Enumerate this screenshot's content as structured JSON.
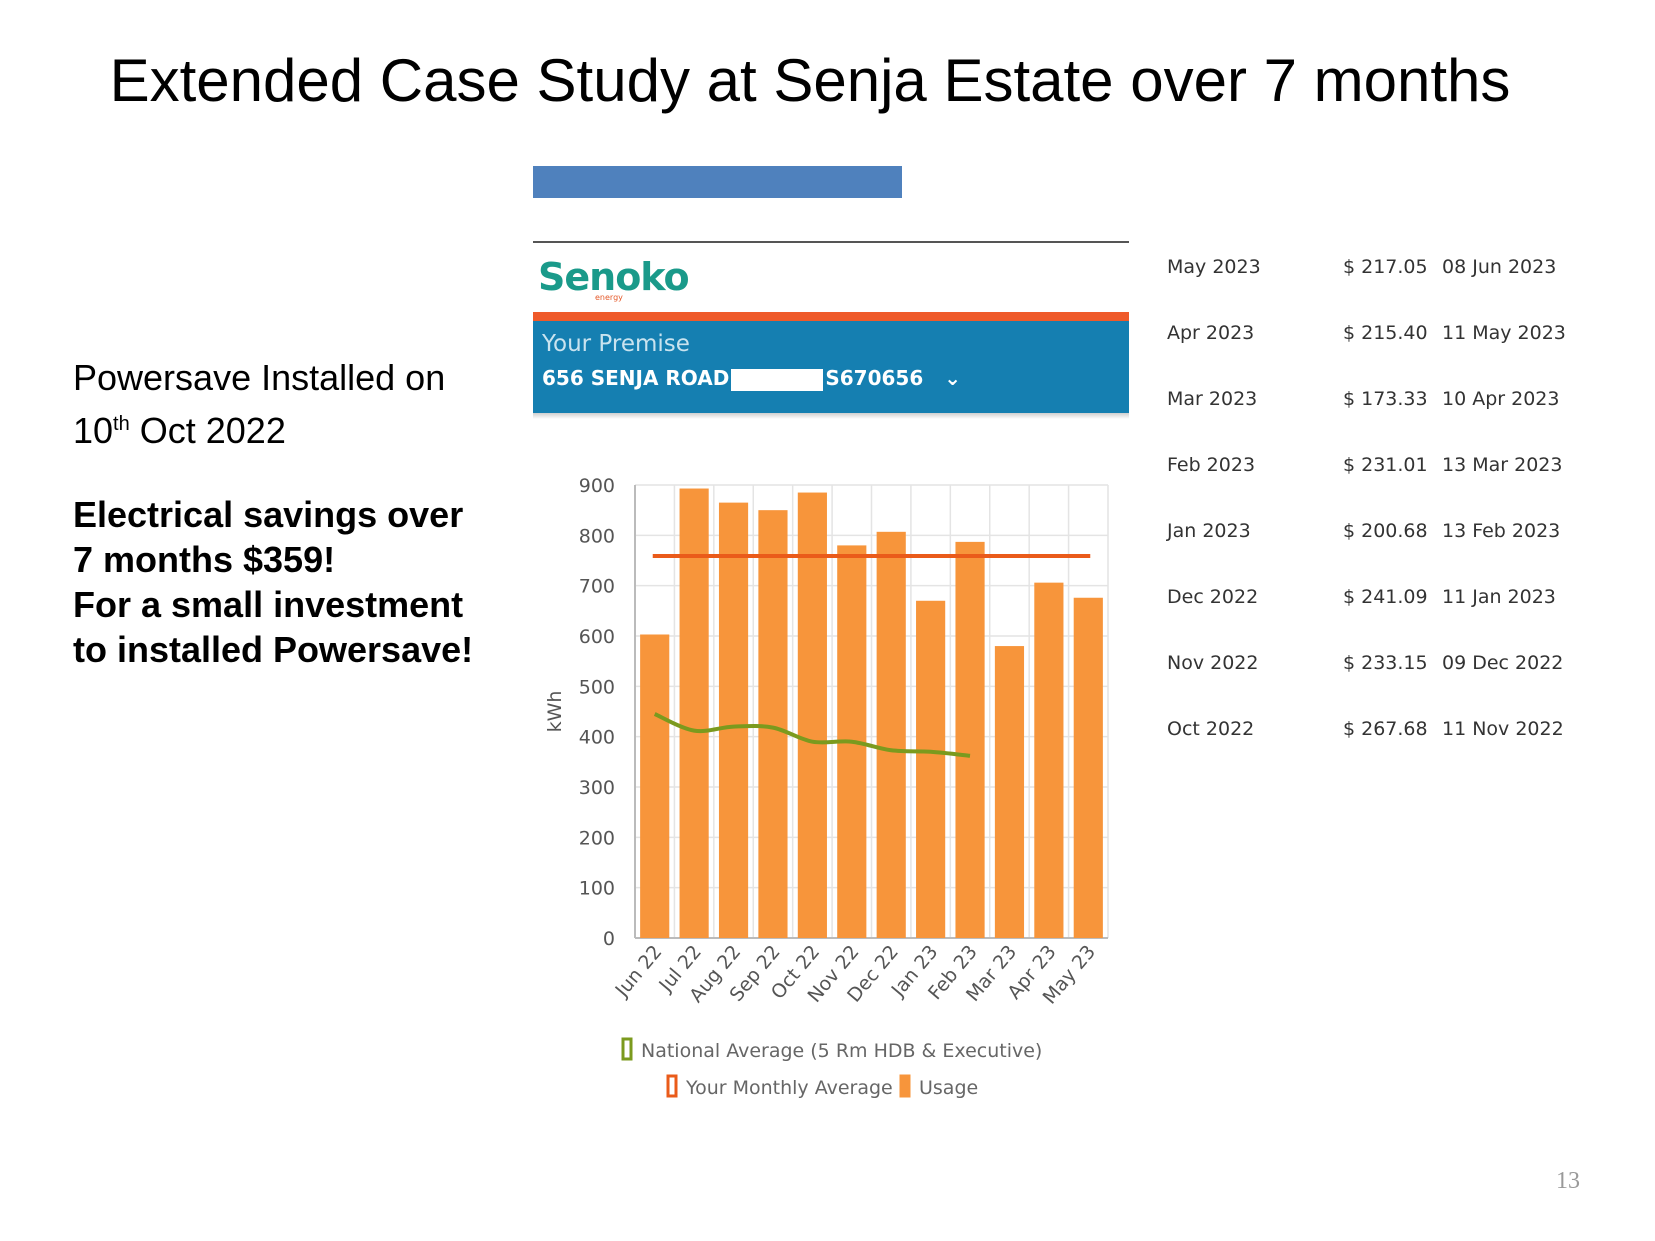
{
  "slide": {
    "title": "Extended Case Study at Senja Estate over 7 months",
    "page_number": "13",
    "accent_color": "#4f81bd"
  },
  "left_panel": {
    "installed_line1": "Powersave Installed on",
    "installed_day": "10",
    "installed_day_suffix": "th",
    "installed_rest": "Oct 2022",
    "savings_lines": [
      "Electrical savings over",
      "7 months $359!",
      "For a small investment",
      "to installed Powersave!"
    ]
  },
  "app_header": {
    "brand": "Senoko",
    "brand_sub": "energy",
    "premise_label": "Your Premise",
    "premise_address_start": "656 SENJA ROAD",
    "premise_address_end": "S670656",
    "dropdown_icon": "chevron-down-icon"
  },
  "chart_data": {
    "type": "bar",
    "ylabel": "kWh",
    "ylim": [
      0,
      900
    ],
    "yticks": [
      0,
      100,
      200,
      300,
      400,
      500,
      600,
      700,
      800,
      900
    ],
    "categories": [
      "Jun 22",
      "Jul 22",
      "Aug 22",
      "Sep 22",
      "Oct 22",
      "Nov 22",
      "Dec 22",
      "Jan 23",
      "Feb 23",
      "Mar 23",
      "Apr 23",
      "May 23"
    ],
    "series": [
      {
        "name": "Usage",
        "type": "bar",
        "color": "#f7953b",
        "values": [
          603,
          893,
          865,
          850,
          885,
          780,
          807,
          670,
          787,
          580,
          706,
          676
        ]
      },
      {
        "name": "Your Monthly Average",
        "type": "line",
        "color": "#ea5b1a",
        "values": [
          759,
          759,
          759,
          759,
          759,
          759,
          759,
          759,
          759,
          759,
          759,
          759
        ]
      },
      {
        "name": "National Average (5 Rm HDB & Executive)",
        "type": "line",
        "color": "#7b9a1e",
        "values": [
          445,
          412,
          420,
          418,
          390,
          390,
          373,
          370,
          362,
          null,
          null,
          null
        ]
      }
    ],
    "legend_position": "bottom",
    "grid": true
  },
  "bills": [
    {
      "month": "May 2023",
      "amount": "$ 217.05",
      "date": "08 Jun 2023"
    },
    {
      "month": "Apr 2023",
      "amount": "$ 215.40",
      "date": "11 May 2023"
    },
    {
      "month": "Mar 2023",
      "amount": "$ 173.33",
      "date": "10 Apr 2023"
    },
    {
      "month": "Feb 2023",
      "amount": "$ 231.01",
      "date": "13 Mar 2023"
    },
    {
      "month": "Jan 2023",
      "amount": "$ 200.68",
      "date": "13 Feb 2023"
    },
    {
      "month": "Dec 2022",
      "amount": "$ 241.09",
      "date": "11 Jan 2023"
    },
    {
      "month": "Nov 2022",
      "amount": "$ 233.15",
      "date": "09 Dec 2022"
    },
    {
      "month": "Oct 2022",
      "amount": "$ 267.68",
      "date": "11 Nov 2022"
    }
  ]
}
